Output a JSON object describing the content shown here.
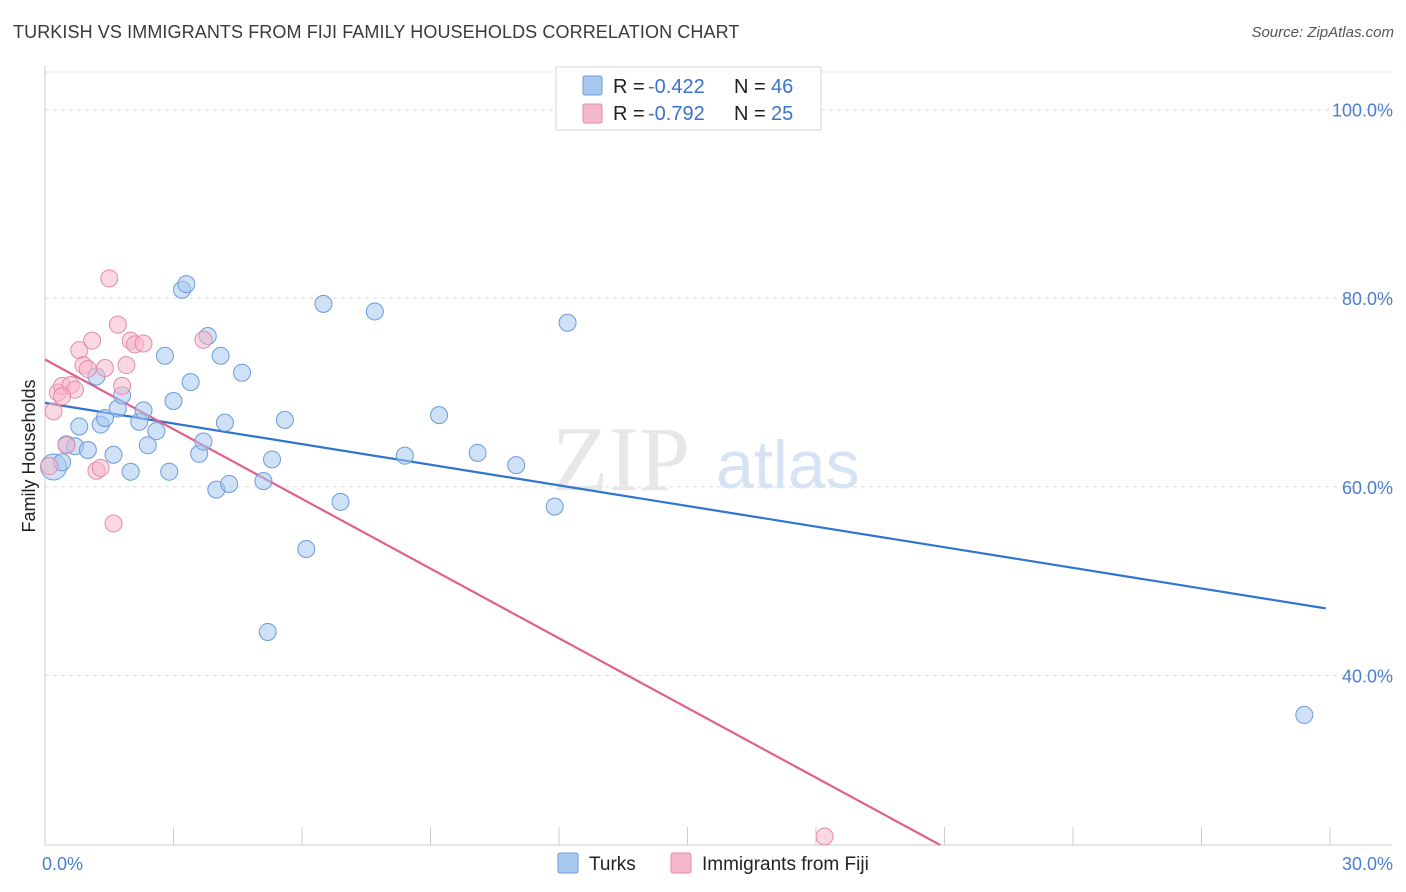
{
  "title": "TURKISH VS IMMIGRANTS FROM FIJI FAMILY HOUSEHOLDS CORRELATION CHART",
  "source": "Source: ZipAtlas.com",
  "watermark": {
    "zip": "ZIP",
    "atlas": "atlas"
  },
  "legend": {
    "rows": [
      {
        "r_label": "R = ",
        "r_value": "-0.422",
        "n_label": "N = ",
        "n_value": "46",
        "color": "#a8c8f0"
      },
      {
        "r_label": "R = ",
        "r_value": "-0.792",
        "n_label": "N = ",
        "n_value": "25",
        "color": "#f5b8cb"
      }
    ]
  },
  "bottom_legend": [
    "Turks",
    "Immigrants from Fiji"
  ],
  "chart_data": {
    "type": "scatter",
    "title": "TURKISH VS IMMIGRANTS FROM FIJI FAMILY HOUSEHOLDS CORRELATION CHART",
    "xlabel": "",
    "ylabel": "Family Households",
    "xlim": [
      0,
      30
    ],
    "ylim": [
      22,
      104
    ],
    "x_tick_labels": [
      {
        "value": 0,
        "label": "0.0%"
      },
      {
        "value": 30,
        "label": "30.0%"
      }
    ],
    "y_tick_labels": [
      {
        "value": 100,
        "label": "100.0%"
      },
      {
        "value": 80,
        "label": "80.0%"
      },
      {
        "value": 60,
        "label": "60.0%"
      },
      {
        "value": 40,
        "label": "40.0%"
      }
    ],
    "grid": true,
    "legend_position": "top-center",
    "series": [
      {
        "name": "Turks",
        "color": "#a8c8f0",
        "stroke": "#6c9bd8",
        "line_color": "#2f74d0",
        "trend": {
          "x": [
            0,
            29.9
          ],
          "y": [
            68.9,
            47.1
          ]
        },
        "points": [
          [
            0.2,
            62.1
          ],
          [
            0.4,
            62.6
          ],
          [
            0.5,
            64.5
          ],
          [
            0.7,
            64.3
          ],
          [
            0.8,
            66.4
          ],
          [
            1.0,
            63.9
          ],
          [
            1.2,
            71.7
          ],
          [
            1.3,
            66.6
          ],
          [
            1.4,
            67.3
          ],
          [
            1.6,
            63.4
          ],
          [
            1.7,
            68.3
          ],
          [
            1.8,
            69.7
          ],
          [
            2.0,
            61.6
          ],
          [
            2.2,
            66.9
          ],
          [
            2.3,
            68.1
          ],
          [
            2.4,
            64.4
          ],
          [
            2.6,
            65.9
          ],
          [
            2.8,
            73.9
          ],
          [
            2.9,
            61.6
          ],
          [
            3.0,
            69.1
          ],
          [
            3.2,
            80.9
          ],
          [
            3.3,
            81.5
          ],
          [
            3.4,
            71.1
          ],
          [
            3.6,
            63.5
          ],
          [
            3.8,
            76.0
          ],
          [
            3.7,
            64.8
          ],
          [
            4.0,
            59.7
          ],
          [
            4.1,
            73.9
          ],
          [
            4.2,
            66.8
          ],
          [
            4.3,
            60.3
          ],
          [
            4.6,
            72.1
          ],
          [
            5.1,
            60.6
          ],
          [
            5.2,
            44.6
          ],
          [
            5.3,
            62.9
          ],
          [
            5.6,
            67.1
          ],
          [
            6.1,
            53.4
          ],
          [
            6.5,
            79.4
          ],
          [
            6.9,
            58.4
          ],
          [
            7.7,
            78.6
          ],
          [
            8.4,
            63.3
          ],
          [
            9.2,
            67.6
          ],
          [
            10.1,
            63.6
          ],
          [
            11.0,
            62.3
          ],
          [
            11.9,
            57.9
          ],
          [
            12.2,
            77.4
          ],
          [
            29.4,
            35.8
          ]
        ]
      },
      {
        "name": "Immigrants from Fiji",
        "color": "#f5b8cb",
        "stroke": "#e78aa8",
        "line_color": "#e0608e",
        "trend": {
          "x": [
            0,
            20.9
          ],
          "y": [
            73.5,
            22.0
          ]
        },
        "points": [
          [
            0.1,
            62.2
          ],
          [
            0.2,
            68.0
          ],
          [
            0.3,
            70.0
          ],
          [
            0.4,
            70.7
          ],
          [
            0.5,
            64.4
          ],
          [
            0.6,
            70.8
          ],
          [
            0.7,
            70.3
          ],
          [
            0.8,
            74.5
          ],
          [
            0.9,
            72.9
          ],
          [
            1.0,
            72.5
          ],
          [
            1.1,
            75.5
          ],
          [
            1.2,
            61.7
          ],
          [
            1.3,
            62.0
          ],
          [
            1.4,
            72.6
          ],
          [
            1.5,
            82.1
          ],
          [
            1.6,
            56.1
          ],
          [
            1.7,
            77.2
          ],
          [
            1.8,
            70.7
          ],
          [
            1.9,
            72.9
          ],
          [
            2.0,
            75.5
          ],
          [
            2.1,
            75.1
          ],
          [
            2.3,
            75.2
          ],
          [
            3.7,
            75.6
          ],
          [
            0.4,
            69.6
          ],
          [
            18.2,
            22.9
          ]
        ]
      }
    ]
  }
}
